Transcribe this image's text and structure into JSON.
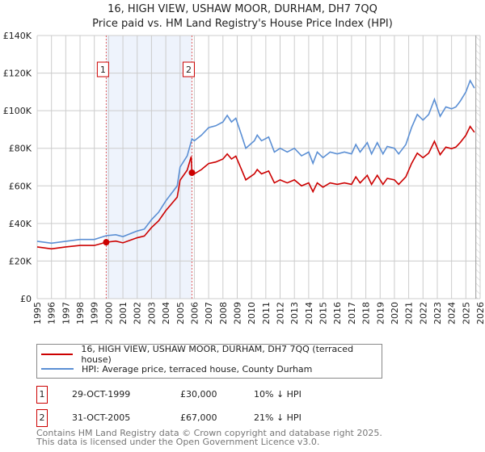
{
  "chart_data": {
    "type": "line",
    "title": "16, HIGH VIEW, USHAW MOOR, DURHAM, DH7 7QQ",
    "subtitle": "Price paid vs. HM Land Registry's House Price Index (HPI)",
    "xlim": [
      1995,
      2026
    ],
    "ylim": [
      0,
      140000
    ],
    "y_ticks": [
      "£0",
      "£20K",
      "£40K",
      "£60K",
      "£80K",
      "£100K",
      "£120K",
      "£140K"
    ],
    "x_ticks": [
      "1995",
      "1996",
      "1997",
      "1998",
      "1999",
      "2000",
      "2001",
      "2002",
      "2003",
      "2004",
      "2005",
      "2006",
      "2007",
      "2008",
      "2009",
      "2010",
      "2011",
      "2012",
      "2013",
      "2014",
      "2015",
      "2016",
      "2017",
      "2018",
      "2019",
      "2020",
      "2021",
      "2022",
      "2023",
      "2024",
      "2025",
      "2026"
    ],
    "series": [
      {
        "name": "16, HIGH VIEW, USHAW MOOR, DURHAM, DH7 7QQ (terraced house)",
        "color": "#cc0000",
        "points": [
          [
            1995,
            27500
          ],
          [
            1996,
            26500
          ],
          [
            1997,
            27500
          ],
          [
            1998,
            28300
          ],
          [
            1999,
            28300
          ],
          [
            1999.83,
            30000
          ],
          [
            2000.5,
            30600
          ],
          [
            2001,
            29700
          ],
          [
            2002,
            32400
          ],
          [
            2002.5,
            33300
          ],
          [
            2003,
            37800
          ],
          [
            2003.5,
            41400
          ],
          [
            2004,
            46800
          ],
          [
            2004.5,
            51300
          ],
          [
            2004.8,
            54000
          ],
          [
            2005,
            63000
          ],
          [
            2005.5,
            68400
          ],
          [
            2005.78,
            75600
          ],
          [
            2005.83,
            67000
          ],
          [
            2006,
            66400
          ],
          [
            2006.5,
            68700
          ],
          [
            2007,
            71900
          ],
          [
            2007.5,
            72700
          ],
          [
            2008,
            74300
          ],
          [
            2008.3,
            77000
          ],
          [
            2008.6,
            74300
          ],
          [
            2008.9,
            75800
          ],
          [
            2009.3,
            68700
          ],
          [
            2009.6,
            63200
          ],
          [
            2010.2,
            66400
          ],
          [
            2010.4,
            68700
          ],
          [
            2010.7,
            66400
          ],
          [
            2011.2,
            67900
          ],
          [
            2011.6,
            61600
          ],
          [
            2012,
            63200
          ],
          [
            2012.5,
            61600
          ],
          [
            2013,
            63200
          ],
          [
            2013.5,
            60000
          ],
          [
            2014,
            61600
          ],
          [
            2014.3,
            56900
          ],
          [
            2014.6,
            61600
          ],
          [
            2015,
            59300
          ],
          [
            2015.5,
            61600
          ],
          [
            2016,
            60800
          ],
          [
            2016.5,
            61600
          ],
          [
            2017,
            60800
          ],
          [
            2017.3,
            64800
          ],
          [
            2017.6,
            61600
          ],
          [
            2018.1,
            65600
          ],
          [
            2018.4,
            60800
          ],
          [
            2018.8,
            65600
          ],
          [
            2019.2,
            60800
          ],
          [
            2019.5,
            64000
          ],
          [
            2020,
            63200
          ],
          [
            2020.3,
            60800
          ],
          [
            2020.8,
            64800
          ],
          [
            2021.2,
            71900
          ],
          [
            2021.6,
            77400
          ],
          [
            2022,
            75000
          ],
          [
            2022.4,
            77400
          ],
          [
            2022.8,
            83700
          ],
          [
            2023.2,
            76600
          ],
          [
            2023.6,
            80600
          ],
          [
            2024,
            79800
          ],
          [
            2024.3,
            80600
          ],
          [
            2024.6,
            83000
          ],
          [
            2025,
            86900
          ],
          [
            2025.3,
            91600
          ],
          [
            2025.6,
            88500
          ]
        ]
      },
      {
        "name": "HPI: Average price, terraced house, County Durham",
        "color": "#5b8fd4",
        "points": [
          [
            1995,
            30500
          ],
          [
            1996,
            29500
          ],
          [
            1997,
            30500
          ],
          [
            1998,
            31500
          ],
          [
            1999,
            31500
          ],
          [
            1999.83,
            33500
          ],
          [
            2000.5,
            34000
          ],
          [
            2001,
            33000
          ],
          [
            2002,
            36000
          ],
          [
            2002.5,
            37000
          ],
          [
            2003,
            42000
          ],
          [
            2003.5,
            46000
          ],
          [
            2004,
            52000
          ],
          [
            2004.5,
            57000
          ],
          [
            2004.8,
            60000
          ],
          [
            2005,
            70000
          ],
          [
            2005.5,
            76000
          ],
          [
            2005.83,
            85000
          ],
          [
            2006,
            84000
          ],
          [
            2006.5,
            87000
          ],
          [
            2007,
            91000
          ],
          [
            2007.5,
            92000
          ],
          [
            2008,
            94000
          ],
          [
            2008.3,
            97500
          ],
          [
            2008.6,
            94000
          ],
          [
            2008.9,
            96000
          ],
          [
            2009.3,
            87000
          ],
          [
            2009.6,
            80000
          ],
          [
            2010.2,
            84000
          ],
          [
            2010.4,
            87000
          ],
          [
            2010.7,
            84000
          ],
          [
            2011.2,
            86000
          ],
          [
            2011.6,
            78000
          ],
          [
            2012,
            80000
          ],
          [
            2012.5,
            78000
          ],
          [
            2013,
            80000
          ],
          [
            2013.5,
            76000
          ],
          [
            2014,
            78000
          ],
          [
            2014.3,
            72000
          ],
          [
            2014.6,
            78000
          ],
          [
            2015,
            75000
          ],
          [
            2015.5,
            78000
          ],
          [
            2016,
            77000
          ],
          [
            2016.5,
            78000
          ],
          [
            2017,
            77000
          ],
          [
            2017.3,
            82000
          ],
          [
            2017.6,
            78000
          ],
          [
            2018.1,
            83000
          ],
          [
            2018.4,
            77000
          ],
          [
            2018.8,
            83000
          ],
          [
            2019.2,
            77000
          ],
          [
            2019.5,
            81000
          ],
          [
            2020,
            80000
          ],
          [
            2020.3,
            77000
          ],
          [
            2020.8,
            82000
          ],
          [
            2021.2,
            91000
          ],
          [
            2021.6,
            98000
          ],
          [
            2022,
            95000
          ],
          [
            2022.4,
            98000
          ],
          [
            2022.8,
            106000
          ],
          [
            2023.2,
            97000
          ],
          [
            2023.6,
            102000
          ],
          [
            2024,
            101000
          ],
          [
            2024.3,
            102000
          ],
          [
            2024.6,
            105000
          ],
          [
            2025,
            110000
          ],
          [
            2025.3,
            116000
          ],
          [
            2025.6,
            112000
          ]
        ]
      }
    ],
    "sales": [
      {
        "label": "1",
        "x": 1999.83,
        "value": 30000
      },
      {
        "label": "2",
        "x": 2005.83,
        "value": 67000
      }
    ],
    "shaded_range": [
      1999.83,
      2005.83
    ],
    "forecast_hatch_from": 2025.7,
    "legend_placement": "bottom"
  },
  "legend": {
    "red": "16, HIGH VIEW, USHAW MOOR, DURHAM, DH7 7QQ (terraced house)",
    "blue": "HPI: Average price, terraced house, County Durham"
  },
  "transactions": [
    {
      "num": "1",
      "date": "29-OCT-1999",
      "price": "£30,000",
      "hpi": "10% ↓ HPI"
    },
    {
      "num": "2",
      "date": "31-OCT-2005",
      "price": "£67,000",
      "hpi": "21% ↓ HPI"
    }
  ],
  "footer": {
    "line1": "Contains HM Land Registry data © Crown copyright and database right 2025.",
    "line2": "This data is licensed under the Open Government Licence v3.0."
  }
}
